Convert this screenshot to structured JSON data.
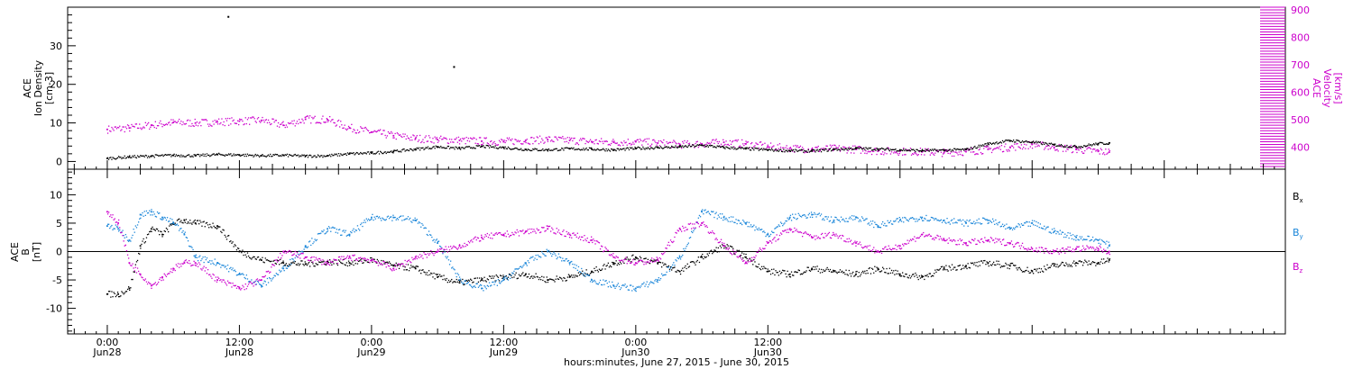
{
  "chart_data": [
    {
      "type": "scatter",
      "panel": "top",
      "ylabel_left": [
        "ACE",
        "Ion Density",
        "[cm-3]"
      ],
      "ylabel_right": [
        "ACE",
        "Velocity",
        "[km/s]"
      ],
      "left_ticks": [
        "0",
        "10",
        "20",
        "30"
      ],
      "right_ticks": [
        "400",
        "500",
        "600",
        "700",
        "800",
        "900"
      ],
      "left_ylim": [
        -2,
        40
      ],
      "right_ylim": [
        320,
        910
      ],
      "left_color": "#000000",
      "right_color": "#cc00cc",
      "series": [
        {
          "axis": "left",
          "color": "#000000",
          "x": [
            0,
            2,
            4,
            6,
            8,
            10,
            12,
            14,
            16,
            18,
            20,
            22,
            24,
            26,
            28,
            30,
            32,
            34,
            36,
            38,
            40,
            42,
            44,
            46,
            48,
            50,
            52,
            54,
            56,
            58,
            60,
            62,
            64,
            66,
            68,
            70,
            72,
            74,
            76,
            78,
            80,
            82,
            84,
            86,
            88,
            90,
            91
          ],
          "y": [
            0.8,
            1.2,
            1.4,
            1.6,
            1.5,
            1.8,
            1.7,
            1.5,
            1.6,
            1.4,
            1.5,
            2.0,
            2.2,
            2.6,
            3.2,
            3.8,
            3.4,
            3.9,
            3.6,
            3.1,
            3.0,
            3.3,
            3.2,
            3.0,
            3.4,
            3.6,
            3.8,
            4.2,
            3.6,
            3.3,
            3.0,
            2.8,
            2.7,
            3.1,
            3.4,
            3.2,
            3.0,
            2.8,
            2.9,
            3.1,
            4.6,
            5.4,
            5.0,
            4.3,
            3.8,
            4.6,
            4.8
          ]
        },
        {
          "axis": "right",
          "color": "#cc00cc",
          "x": [
            0,
            2,
            4,
            6,
            8,
            10,
            12,
            14,
            16,
            18,
            20,
            22,
            24,
            26,
            28,
            30,
            32,
            34,
            36,
            38,
            40,
            42,
            44,
            46,
            48,
            50,
            52,
            54,
            56,
            58,
            60,
            62,
            64,
            66,
            68,
            70,
            72,
            74,
            76,
            78,
            80,
            82,
            84,
            86,
            88,
            90,
            91
          ],
          "y": [
            465,
            470,
            480,
            490,
            488,
            492,
            495,
            498,
            480,
            502,
            500,
            470,
            455,
            442,
            432,
            428,
            425,
            422,
            420,
            425,
            428,
            425,
            420,
            418,
            420,
            415,
            410,
            412,
            418,
            412,
            402,
            396,
            393,
            395,
            392,
            386,
            385,
            383,
            380,
            384,
            392,
            400,
            410,
            400,
            392,
            385,
            382
          ]
        }
      ],
      "spikes": [
        {
          "x": 11,
          "y": 37.5,
          "color": "#000000"
        },
        {
          "x": 31.5,
          "y": 24.5,
          "color": "#000000"
        }
      ]
    },
    {
      "type": "scatter",
      "panel": "bottom",
      "ylabel": [
        "ACE",
        "B",
        "[nT]"
      ],
      "left_ticks": [
        "-10",
        "-5",
        "0",
        "5",
        "10"
      ],
      "ylim": [
        -14.5,
        14.5
      ],
      "zero_line": true,
      "legend": [
        {
          "label": "Bx",
          "sub": "x",
          "color": "#000000"
        },
        {
          "label": "By",
          "sub": "y",
          "color": "#1a86d9"
        },
        {
          "label": "Bz",
          "sub": "z",
          "color": "#cc00cc"
        }
      ],
      "series": [
        {
          "name": "Bx",
          "color": "#000000",
          "x": [
            0,
            1,
            2,
            3,
            4,
            5,
            6,
            7,
            8,
            10,
            12,
            14,
            16,
            18,
            20,
            22,
            24,
            26,
            28,
            30,
            32,
            34,
            36,
            38,
            40,
            42,
            44,
            46,
            48,
            50,
            52,
            54,
            56,
            58,
            60,
            62,
            64,
            66,
            68,
            70,
            72,
            74,
            76,
            78,
            80,
            82,
            84,
            86,
            88,
            90,
            91
          ],
          "y": [
            -7.5,
            -7.5,
            -6.5,
            1.0,
            4.0,
            3.0,
            5.0,
            5.5,
            5.0,
            4.5,
            0.0,
            -1.5,
            -2.0,
            -2.2,
            -1.8,
            -2.0,
            -1.5,
            -2.5,
            -3.0,
            -4.5,
            -5.5,
            -5.0,
            -4.5,
            -4.0,
            -5.0,
            -4.5,
            -3.5,
            -2.0,
            -1.0,
            -2.0,
            -3.5,
            -1.0,
            1.0,
            -1.0,
            -3.5,
            -4.0,
            -3.0,
            -3.5,
            -4.0,
            -3.0,
            -4.0,
            -4.5,
            -3.0,
            -2.5,
            -2.0,
            -2.5,
            -3.5,
            -2.5,
            -2.0,
            -2.0,
            -1.5
          ]
        },
        {
          "name": "By",
          "color": "#1a86d9",
          "x": [
            0,
            1,
            2,
            3,
            4,
            5,
            6,
            7,
            8,
            10,
            12,
            14,
            16,
            18,
            20,
            22,
            24,
            26,
            28,
            30,
            32,
            34,
            36,
            38,
            40,
            42,
            44,
            46,
            48,
            50,
            52,
            54,
            56,
            58,
            60,
            62,
            64,
            66,
            68,
            70,
            72,
            74,
            76,
            78,
            80,
            82,
            84,
            86,
            88,
            90,
            91
          ],
          "y": [
            4.5,
            4.0,
            2.0,
            6.5,
            7.0,
            6.0,
            5.0,
            3.0,
            -1.0,
            -2.0,
            -4.0,
            -6.0,
            -3.0,
            1.0,
            4.0,
            3.0,
            6.0,
            6.0,
            5.5,
            1.5,
            -5.0,
            -6.5,
            -5.0,
            -2.0,
            0.0,
            -2.0,
            -5.0,
            -6.0,
            -6.5,
            -5.0,
            -1.0,
            7.0,
            6.0,
            5.0,
            3.0,
            6.0,
            6.5,
            5.5,
            6.0,
            4.5,
            5.5,
            6.0,
            5.5,
            5.0,
            5.5,
            4.0,
            5.0,
            3.5,
            2.5,
            2.0,
            1.0
          ]
        },
        {
          "name": "Bz",
          "color": "#cc00cc",
          "x": [
            0,
            1,
            2,
            3,
            4,
            5,
            6,
            7,
            8,
            10,
            12,
            14,
            16,
            18,
            20,
            22,
            24,
            26,
            28,
            30,
            32,
            34,
            36,
            38,
            40,
            42,
            44,
            46,
            48,
            50,
            52,
            54,
            56,
            58,
            60,
            62,
            64,
            66,
            68,
            70,
            72,
            74,
            76,
            78,
            80,
            82,
            84,
            86,
            88,
            90,
            91
          ],
          "y": [
            7.0,
            5.0,
            -2.0,
            -4.0,
            -6.0,
            -4.5,
            -3.0,
            -2.0,
            -2.0,
            -5.0,
            -6.5,
            -5.0,
            0.0,
            -1.0,
            -2.0,
            -1.0,
            -1.5,
            -3.0,
            -1.0,
            0.0,
            1.0,
            2.5,
            3.0,
            3.5,
            4.0,
            3.0,
            2.0,
            -1.0,
            -2.0,
            -1.5,
            4.0,
            5.0,
            1.0,
            -2.0,
            1.5,
            4.0,
            2.5,
            3.0,
            1.5,
            0.0,
            1.0,
            3.0,
            2.0,
            1.5,
            2.0,
            1.5,
            0.5,
            0.0,
            0.5,
            0.5,
            0.0
          ]
        }
      ]
    }
  ],
  "x_axis": {
    "range": [
      -3.6,
      107
    ],
    "tick_labels": [
      {
        "x": 0,
        "time": "0:00",
        "date": "Jun28"
      },
      {
        "x": 12,
        "time": "12:00",
        "date": "Jun28"
      },
      {
        "x": 24,
        "time": "0:00",
        "date": "Jun29"
      },
      {
        "x": 36,
        "time": "12:00",
        "date": "Jun29"
      },
      {
        "x": 48,
        "time": "0:00",
        "date": "Jun30"
      },
      {
        "x": 60,
        "time": "12:00",
        "date": "Jun30"
      }
    ],
    "xlabel": "hours:minutes, June 27, 2015 - June 30, 2015"
  }
}
